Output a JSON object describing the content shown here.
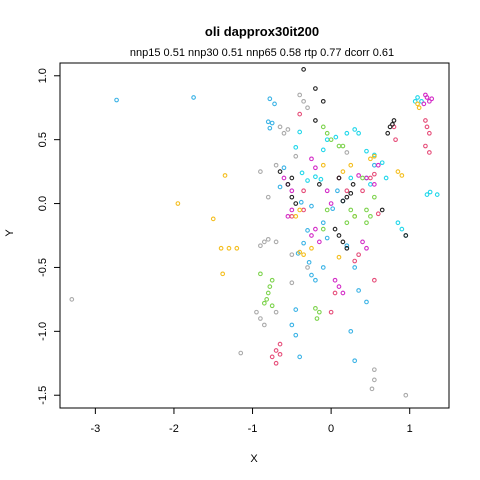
{
  "chart_data": {
    "type": "scatter",
    "title": "oli dapprox30it200",
    "subtitle": "nnp15 0.51 nnp30 0.51 nnp65 0.58 rtp 0.77 dcorr 0.61",
    "xlabel": "X",
    "ylabel": "Y",
    "xlim": [
      -3.45,
      1.5
    ],
    "ylim": [
      -1.6,
      1.1
    ],
    "x_ticks": [
      -3,
      -2,
      -1,
      0,
      1
    ],
    "x_tick_labels": [
      "-3",
      "-2",
      "-1",
      "0",
      "1"
    ],
    "y_ticks": [
      -1.5,
      -1.0,
      -0.5,
      0.0,
      0.5,
      1.0
    ],
    "y_tick_labels": [
      "-1.5",
      "-1.0",
      "-0.5",
      "0.0",
      "0.5",
      "1.0"
    ],
    "grid": false,
    "legend": "none",
    "marker": "open-circle",
    "series": [
      {
        "color": "#3BB3E6",
        "points": [
          [
            -2.73,
            0.81
          ],
          [
            -1.75,
            0.83
          ],
          [
            -0.78,
            0.82
          ],
          [
            -0.8,
            0.64
          ],
          [
            -0.78,
            0.59
          ],
          [
            -0.6,
            0.28
          ],
          [
            -0.65,
            0.13
          ],
          [
            -0.38,
            0.01
          ],
          [
            -0.25,
            -0.02
          ],
          [
            -0.3,
            -0.21
          ],
          [
            -0.42,
            -0.39
          ],
          [
            -0.35,
            -0.31
          ],
          [
            -0.28,
            -0.46
          ],
          [
            -0.25,
            -0.56
          ],
          [
            -0.2,
            -0.6
          ],
          [
            -0.1,
            -0.5
          ],
          [
            -0.05,
            -0.27
          ],
          [
            0.02,
            -0.04
          ],
          [
            0.15,
            0.02
          ],
          [
            0.2,
            -0.33
          ],
          [
            0.3,
            -0.5
          ],
          [
            0.35,
            -0.68
          ],
          [
            0.45,
            -0.77
          ],
          [
            0.25,
            -1.0
          ],
          [
            0.3,
            -1.23
          ],
          [
            -0.4,
            -1.2
          ],
          [
            -0.45,
            -1.03
          ],
          [
            -0.5,
            -0.95
          ],
          [
            -0.45,
            -0.83
          ],
          [
            0.45,
            0.2
          ],
          [
            0.55,
            0.3
          ],
          [
            -0.72,
            0.78
          ],
          [
            -0.75,
            0.63
          ],
          [
            -0.1,
            -0.15
          ],
          [
            0.08,
            0.1
          ]
        ]
      },
      {
        "color": "#21D7EA",
        "points": [
          [
            -0.4,
            0.56
          ],
          [
            -0.45,
            0.44
          ],
          [
            -0.37,
            0.24
          ],
          [
            -0.3,
            0.18
          ],
          [
            -0.2,
            0.21
          ],
          [
            -0.13,
            0.19
          ],
          [
            -0.1,
            0.42
          ],
          [
            -0.05,
            0.5
          ],
          [
            0.06,
            0.52
          ],
          [
            0.2,
            0.55
          ],
          [
            0.3,
            0.58
          ],
          [
            0.35,
            0.55
          ],
          [
            0.45,
            0.41
          ],
          [
            0.55,
            0.38
          ],
          [
            0.65,
            0.32
          ],
          [
            0.7,
            0.2
          ],
          [
            0.85,
            -0.15
          ],
          [
            0.9,
            -0.2
          ],
          [
            0.95,
            -0.25
          ],
          [
            1.22,
            0.07
          ],
          [
            1.26,
            0.09
          ],
          [
            1.35,
            0.07
          ],
          [
            1.07,
            0.8
          ],
          [
            1.1,
            0.83
          ],
          [
            1.15,
            0.8
          ],
          [
            0.25,
            0.2
          ],
          [
            0.5,
            0.15
          ]
        ]
      },
      {
        "color": "#D32CC7",
        "points": [
          [
            1.2,
            0.85
          ],
          [
            1.22,
            0.83
          ],
          [
            1.25,
            0.8
          ],
          [
            1.18,
            0.78
          ],
          [
            1.28,
            0.82
          ],
          [
            -0.25,
            0.35
          ],
          [
            -0.2,
            0.28
          ],
          [
            -0.05,
            0.1
          ],
          [
            0.0,
            0.0
          ],
          [
            0.35,
            0.22
          ],
          [
            0.45,
            0.2
          ],
          [
            0.55,
            0.15
          ],
          [
            0.6,
            0.3
          ],
          [
            -0.6,
            0.2
          ],
          [
            -0.55,
            0.15
          ],
          [
            -0.5,
            0.1
          ],
          [
            -0.5,
            -0.05
          ],
          [
            -0.55,
            -0.1
          ],
          [
            0.05,
            -0.6
          ],
          [
            0.1,
            -0.65
          ],
          [
            0.15,
            -0.7
          ],
          [
            -0.2,
            -0.2
          ],
          [
            -0.25,
            -0.25
          ],
          [
            -0.15,
            -0.3
          ],
          [
            0.4,
            -0.3
          ],
          [
            0.45,
            -0.35
          ]
        ]
      },
      {
        "color": "#E64D79",
        "points": [
          [
            0.8,
            0.6
          ],
          [
            0.82,
            0.5
          ],
          [
            1.2,
            0.65
          ],
          [
            1.22,
            0.6
          ],
          [
            1.25,
            0.55
          ],
          [
            1.2,
            0.45
          ],
          [
            1.25,
            0.4
          ],
          [
            -0.4,
            0.7
          ],
          [
            -0.35,
            0.1
          ],
          [
            -0.5,
            -0.1
          ],
          [
            -0.35,
            -0.05
          ],
          [
            0.05,
            -0.7
          ],
          [
            0.0,
            -0.85
          ],
          [
            -0.65,
            -1.1
          ],
          [
            -0.7,
            -1.15
          ],
          [
            -0.75,
            -1.2
          ],
          [
            -0.7,
            -1.25
          ],
          [
            -0.65,
            -1.18
          ],
          [
            0.4,
            0.1
          ],
          [
            0.5,
            0.2
          ],
          [
            0.55,
            0.23
          ],
          [
            0.6,
            -0.08
          ],
          [
            0.1,
            0.2
          ],
          [
            0.2,
            0.1
          ],
          [
            0.35,
            -0.4
          ],
          [
            0.3,
            -0.45
          ],
          [
            0.55,
            -0.6
          ]
        ]
      },
      {
        "color": "#F4BE1F",
        "points": [
          [
            -1.95,
            0.0
          ],
          [
            -1.5,
            -0.12
          ],
          [
            -1.4,
            -0.35
          ],
          [
            -1.3,
            -0.35
          ],
          [
            -1.2,
            -0.35
          ],
          [
            -1.35,
            0.22
          ],
          [
            -1.38,
            -0.55
          ],
          [
            -0.4,
            -0.05
          ],
          [
            -0.45,
            -0.1
          ],
          [
            -0.4,
            -0.38
          ],
          [
            -0.35,
            -0.4
          ],
          [
            -0.25,
            -0.35
          ],
          [
            0.1,
            -0.42
          ],
          [
            0.15,
            0.25
          ],
          [
            0.25,
            0.3
          ],
          [
            0.5,
            0.35
          ],
          [
            0.55,
            0.37
          ],
          [
            0.85,
            0.25
          ],
          [
            0.9,
            0.22
          ],
          [
            1.1,
            0.78
          ],
          [
            1.12,
            0.75
          ],
          [
            -0.1,
            0.3
          ],
          [
            0.3,
            -0.1
          ]
        ]
      },
      {
        "color": "#7DD34D",
        "points": [
          [
            -0.75,
            -0.6
          ],
          [
            -0.78,
            -0.65
          ],
          [
            -0.8,
            -0.7
          ],
          [
            -0.82,
            -0.75
          ],
          [
            -0.85,
            -0.78
          ],
          [
            -0.75,
            -0.8
          ],
          [
            -0.9,
            -0.55
          ],
          [
            -0.2,
            -0.82
          ],
          [
            -0.15,
            -0.85
          ],
          [
            -0.18,
            -0.9
          ],
          [
            -0.1,
            0.6
          ],
          [
            -0.05,
            0.55
          ],
          [
            0.0,
            0.5
          ],
          [
            0.1,
            0.45
          ],
          [
            0.25,
            -0.05
          ],
          [
            0.3,
            -0.1
          ],
          [
            0.2,
            -0.15
          ],
          [
            0.45,
            -0.05
          ],
          [
            0.5,
            -0.1
          ],
          [
            0.45,
            -0.15
          ],
          [
            0.55,
            0.05
          ],
          [
            -0.05,
            -0.05
          ],
          [
            -0.1,
            -0.2
          ],
          [
            0.4,
            0.2
          ],
          [
            0.15,
            0.45
          ]
        ]
      },
      {
        "color": "#AAAAAA",
        "points": [
          [
            -3.3,
            -0.75
          ],
          [
            -0.4,
            0.85
          ],
          [
            -0.35,
            0.8
          ],
          [
            -0.3,
            0.75
          ],
          [
            -0.65,
            0.6
          ],
          [
            -0.6,
            0.55
          ],
          [
            -0.55,
            0.58
          ],
          [
            -0.7,
            0.3
          ],
          [
            -0.9,
            0.25
          ],
          [
            -0.85,
            -0.3
          ],
          [
            -0.9,
            -0.33
          ],
          [
            -0.8,
            -0.28
          ],
          [
            -0.7,
            -0.3
          ],
          [
            -0.85,
            -0.95
          ],
          [
            -0.9,
            -0.9
          ],
          [
            -0.95,
            -0.85
          ],
          [
            -0.7,
            -0.85
          ],
          [
            -0.3,
            -0.5
          ],
          [
            -0.5,
            -0.4
          ],
          [
            -1.15,
            -1.17
          ],
          [
            0.52,
            -1.45
          ],
          [
            0.55,
            -1.38
          ],
          [
            0.95,
            -1.5
          ],
          [
            0.55,
            -1.3
          ],
          [
            -0.45,
            0.37
          ],
          [
            -0.8,
            0.05
          ],
          [
            -0.5,
            -0.62
          ],
          [
            0.2,
            0.4
          ]
        ]
      },
      {
        "color": "#222222",
        "points": [
          [
            -0.35,
            1.05
          ],
          [
            -0.2,
            0.9
          ],
          [
            -0.1,
            0.8
          ],
          [
            -0.2,
            0.65
          ],
          [
            -0.65,
            0.25
          ],
          [
            -0.55,
            0.15
          ],
          [
            -0.5,
            0.2
          ],
          [
            -0.5,
            0.05
          ],
          [
            -0.45,
            0.0
          ],
          [
            0.15,
            0.02
          ],
          [
            0.2,
            0.05
          ],
          [
            0.25,
            0.08
          ],
          [
            0.28,
            0.15
          ],
          [
            0.75,
            0.6
          ],
          [
            0.78,
            0.62
          ],
          [
            0.8,
            0.65
          ],
          [
            0.72,
            0.55
          ],
          [
            0.1,
            -0.25
          ],
          [
            0.15,
            -0.3
          ],
          [
            0.05,
            -0.2
          ],
          [
            0.2,
            -0.35
          ],
          [
            0.95,
            -0.25
          ],
          [
            0.65,
            -0.05
          ],
          [
            0.1,
            0.2
          ],
          [
            -0.15,
            0.15
          ]
        ]
      }
    ]
  }
}
